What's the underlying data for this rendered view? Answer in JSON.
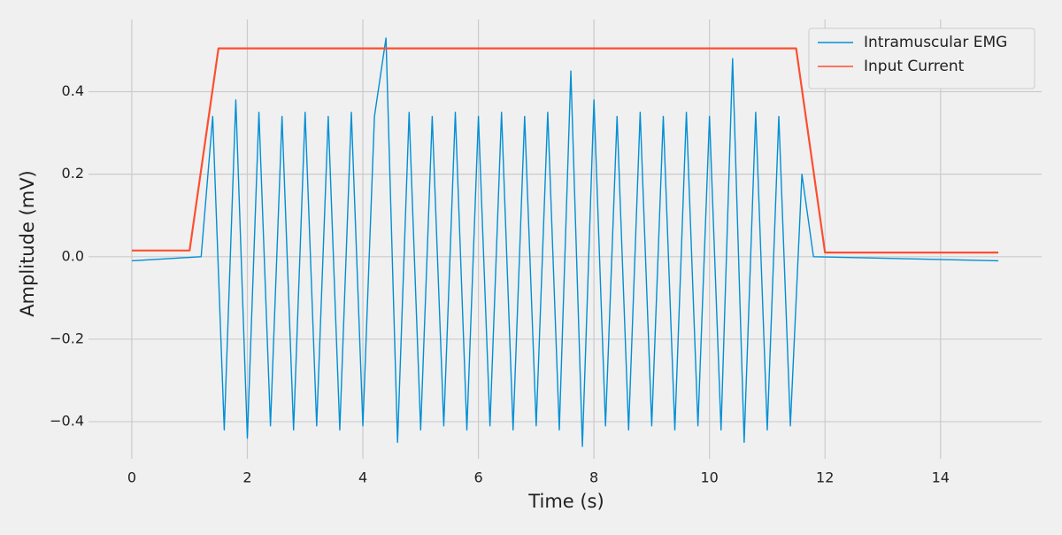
{
  "chart_data": {
    "type": "line",
    "xlabel": "Time (s)",
    "ylabel": "Amplitude (mV)",
    "xlim": [
      -0.75,
      15.75
    ],
    "ylim": [
      -0.49,
      0.575
    ],
    "xticks": [
      0,
      2,
      4,
      6,
      8,
      10,
      12,
      14
    ],
    "yticks": [
      {
        "value": -0.4,
        "label": "−0.4"
      },
      {
        "value": -0.2,
        "label": "−0.2"
      },
      {
        "value": 0,
        "label": "0.0"
      },
      {
        "value": 0.2,
        "label": "0.2"
      },
      {
        "value": 0.4,
        "label": "0.4"
      }
    ],
    "grid": true,
    "legend": "upper right",
    "series": [
      {
        "name": "Intramuscular EMG",
        "color": "#008fd5",
        "x": [
          0,
          1.2,
          1.4,
          1.6,
          1.8,
          2.0,
          2.2,
          2.4,
          2.6,
          2.8,
          3.0,
          3.2,
          3.4,
          3.6,
          3.8,
          4.0,
          4.2,
          4.4,
          4.6,
          4.8,
          5.0,
          5.2,
          5.4,
          5.6,
          5.8,
          6.0,
          6.2,
          6.4,
          6.6,
          6.8,
          7.0,
          7.2,
          7.4,
          7.6,
          7.8,
          8.0,
          8.2,
          8.4,
          8.6,
          8.8,
          9.0,
          9.2,
          9.4,
          9.6,
          9.8,
          10.0,
          10.2,
          10.4,
          10.6,
          10.8,
          11.0,
          11.2,
          11.4,
          11.6,
          11.8,
          15
        ],
        "values": [
          -0.01,
          0.0,
          0.34,
          -0.42,
          0.38,
          -0.44,
          0.35,
          -0.41,
          0.34,
          -0.42,
          0.35,
          -0.41,
          0.34,
          -0.42,
          0.35,
          -0.41,
          0.34,
          0.53,
          -0.45,
          0.35,
          -0.42,
          0.34,
          -0.41,
          0.35,
          -0.42,
          0.34,
          -0.41,
          0.35,
          -0.42,
          0.34,
          -0.41,
          0.35,
          -0.42,
          0.45,
          -0.46,
          0.38,
          -0.41,
          0.34,
          -0.42,
          0.35,
          -0.41,
          0.34,
          -0.42,
          0.35,
          -0.41,
          0.34,
          -0.42,
          0.48,
          -0.45,
          0.35,
          -0.42,
          0.34,
          -0.41,
          0.2,
          0.0,
          -0.01
        ]
      },
      {
        "name": "Input Current",
        "color": "#fc4f30",
        "x": [
          0,
          1,
          1.5,
          11.5,
          12,
          15
        ],
        "values": [
          0.015,
          0.015,
          0.505,
          0.505,
          0.01,
          0.01
        ]
      }
    ]
  }
}
